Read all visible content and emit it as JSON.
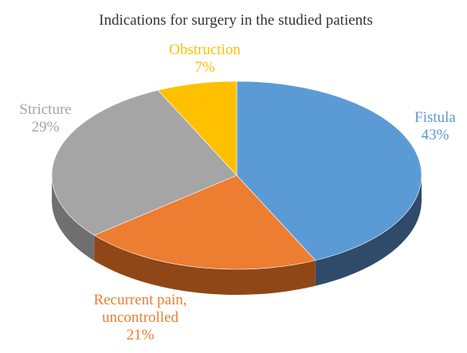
{
  "chart_data": {
    "type": "pie",
    "title": "Indications for surgery in the studied patients",
    "slices": [
      {
        "label": "Fistula",
        "label_lines": [
          "Fistula"
        ],
        "value": 43,
        "value_label": "43%",
        "color": "#5b9bd5"
      },
      {
        "label": "Recurrent pain, uncontrolled",
        "label_lines": [
          "Recurrent pain,",
          "uncontrolled"
        ],
        "value": 21,
        "value_label": "21%",
        "color": "#ed7d31"
      },
      {
        "label": "Stricture",
        "label_lines": [
          "Stricture"
        ],
        "value": 29,
        "value_label": "29%",
        "color": "#a5a5a5"
      },
      {
        "label": "Obstruction",
        "label_lines": [
          "Obstruction"
        ],
        "value": 7,
        "value_label": "7%",
        "color": "#ffc000"
      }
    ],
    "legend": "none",
    "style": "3d"
  }
}
